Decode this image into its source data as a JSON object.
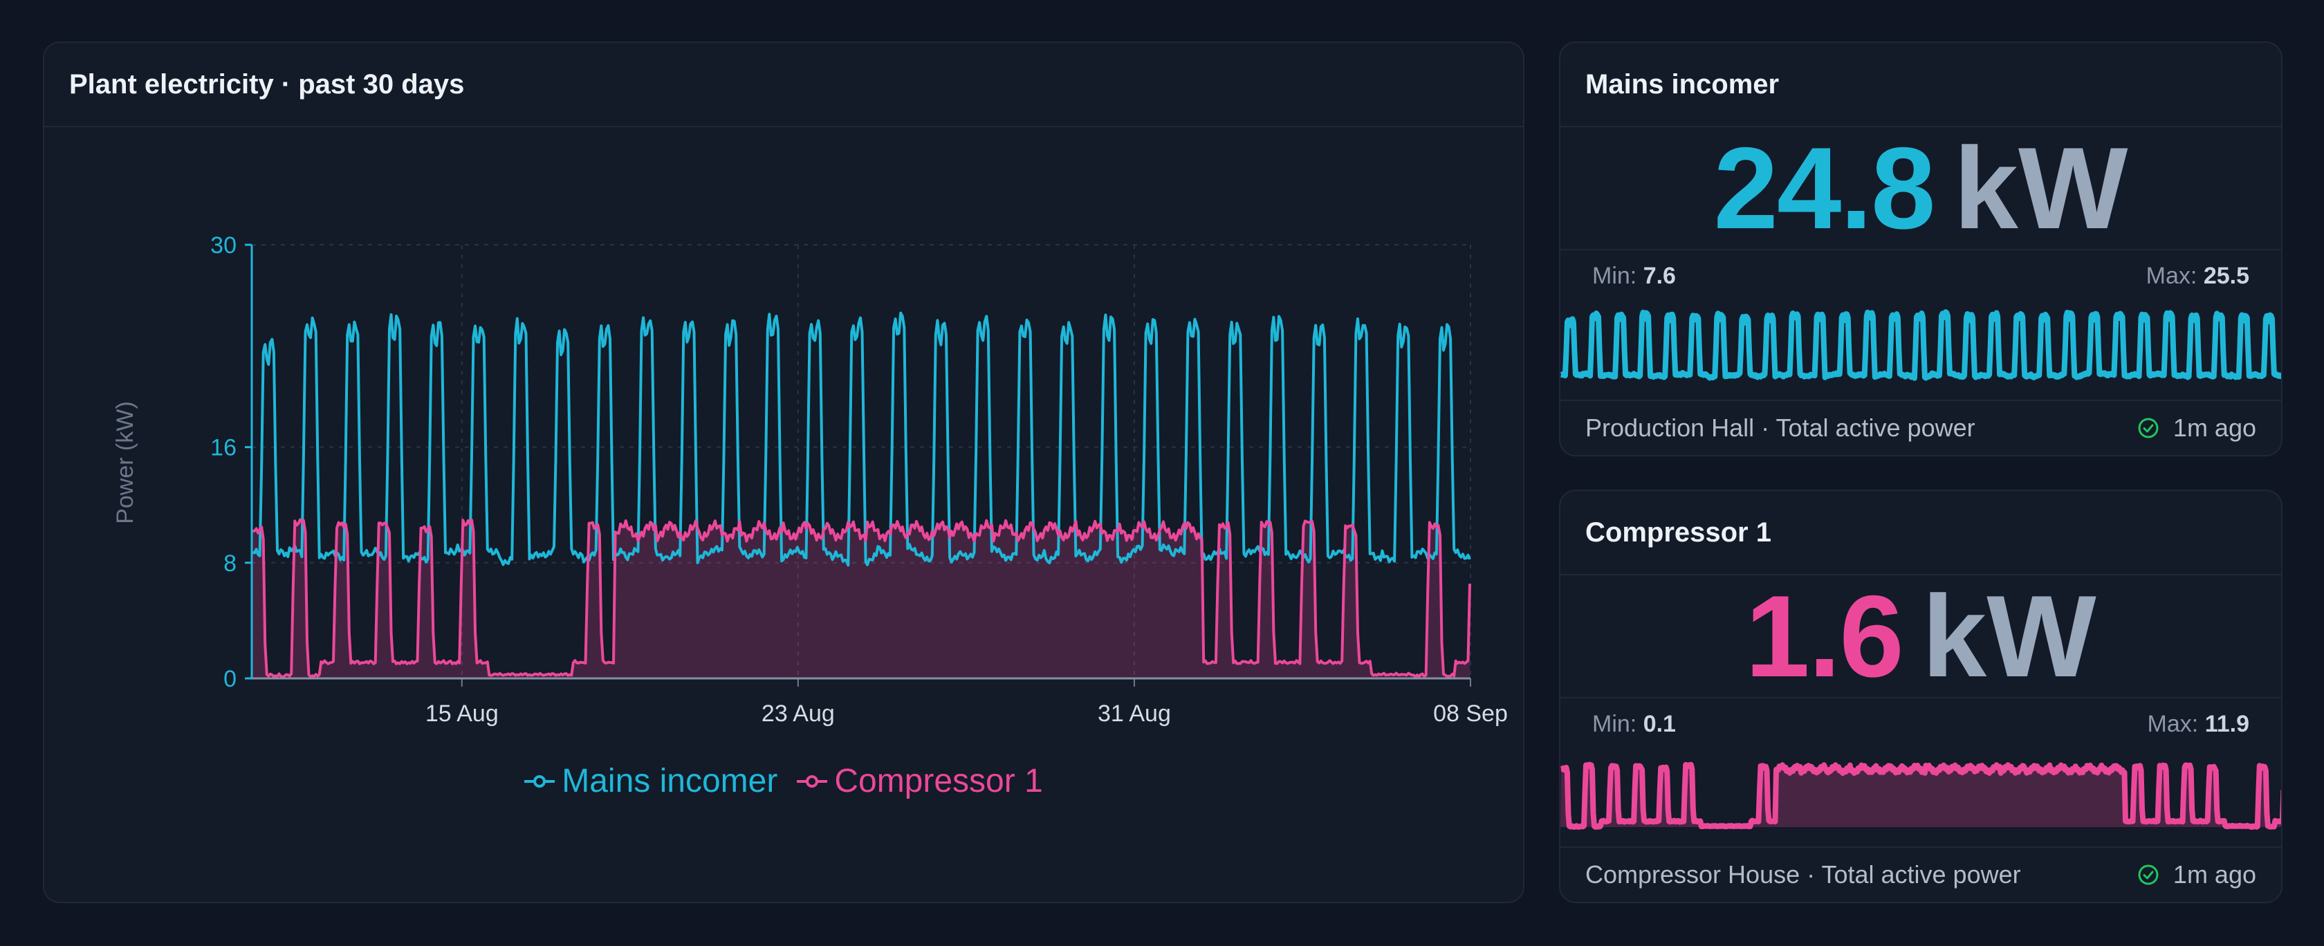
{
  "main_panel": {
    "title": "Plant electricity · past 30 days"
  },
  "colors": {
    "mains": "#1fb7d8",
    "compressor": "#ec4899",
    "background": "#0f1523",
    "panel": "#131a28",
    "ok": "#22c55e"
  },
  "chart_data": {
    "type": "line",
    "title": "Plant electricity · past 30 days",
    "ylabel": "Power (kW)",
    "ylim": [
      0,
      30
    ],
    "yticks": [
      0,
      8,
      16,
      30
    ],
    "xlim": [
      "2025-08-10",
      "2025-09-08"
    ],
    "xticks": [
      "15 Aug",
      "23 Aug",
      "31 Aug",
      "08 Sep"
    ],
    "grid": true,
    "legend_position": "bottom",
    "series": [
      {
        "name": "Mains incomer",
        "color": "#1fb7d8",
        "fill": false,
        "daily_min": [
          8.5,
          8.7,
          8.4,
          8.6,
          8.5,
          9.0,
          8.3,
          8.8,
          8.5,
          8.6,
          8.4,
          8.7,
          8.5,
          8.6,
          8.3,
          8.8,
          8.5,
          8.7,
          8.6,
          8.4,
          8.5,
          8.8,
          8.6,
          8.5,
          8.7,
          8.4,
          8.6,
          8.5,
          8.7,
          8.6
        ],
        "daily_peak": [
          23.5,
          25.0,
          24.8,
          25.2,
          24.7,
          24.6,
          24.9,
          24.2,
          24.5,
          25.1,
          25.0,
          24.8,
          25.2,
          24.9,
          25.0,
          25.3,
          24.8,
          25.1,
          25.0,
          24.7,
          25.2,
          24.9,
          25.0,
          24.8,
          25.1,
          24.6,
          24.9,
          24.7,
          24.5,
          25.2
        ]
      },
      {
        "name": "Compressor 1",
        "color": "#ec4899",
        "fill": true,
        "daily_on": [
          1,
          1,
          1,
          1,
          1,
          1,
          0,
          0,
          1,
          1,
          1,
          1,
          1,
          1,
          1,
          1,
          1,
          1,
          1,
          1,
          1,
          1,
          1,
          1,
          1,
          1,
          1,
          1,
          1,
          1
        ],
        "daily_min": [
          0.1,
          0.1,
          1.0,
          1.0,
          1.0,
          1.0,
          0.1,
          0.1,
          1.0,
          9.5,
          9.5,
          9.5,
          9.5,
          9.5,
          9.5,
          9.5,
          9.5,
          9.5,
          9.5,
          9.5,
          9.5,
          9.5,
          9.5,
          1.0,
          1.0,
          1.0,
          1.0,
          0.1,
          0.1,
          1.0
        ],
        "daily_peak": [
          10.5,
          11.0,
          10.8,
          10.9,
          10.6,
          11.0,
          0.5,
          0.5,
          10.8,
          11.2,
          11.5,
          11.3,
          11.6,
          11.2,
          11.4,
          11.5,
          11.3,
          11.6,
          11.4,
          11.2,
          11.5,
          11.3,
          11.4,
          10.8,
          10.9,
          11.0,
          10.7,
          0.5,
          10.8,
          11.0
        ]
      }
    ]
  },
  "mains_card": {
    "title": "Mains incomer",
    "value": "24.8",
    "unit": "kW",
    "min_label": "Min:",
    "min_value": "7.6",
    "max_label": "Max:",
    "max_value": "25.5",
    "source": "Production Hall · Total active power",
    "updated": "1m ago",
    "status_icon": "check-circle-icon"
  },
  "compressor_card": {
    "title": "Compressor 1",
    "value": "1.6",
    "unit": "kW",
    "min_label": "Min:",
    "min_value": "0.1",
    "max_label": "Max:",
    "max_value": "11.9",
    "source": "Compressor House · Total active power",
    "updated": "1m ago",
    "status_icon": "check-circle-icon"
  }
}
